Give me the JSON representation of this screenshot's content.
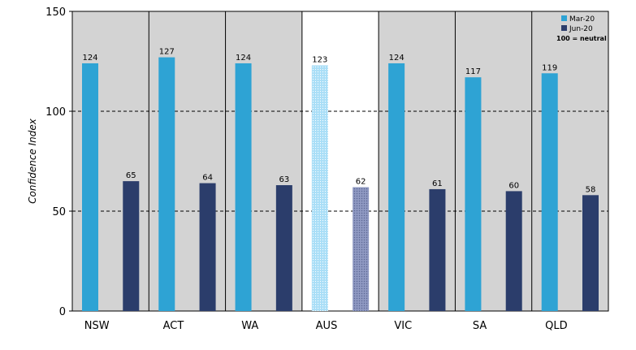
{
  "chart_data": {
    "type": "bar",
    "categories": [
      "NSW",
      "ACT",
      "WA",
      "AUS",
      "VIC",
      "SA",
      "QLD"
    ],
    "series": [
      {
        "name": "Mar-20",
        "values": [
          124,
          127,
          124,
          123,
          124,
          117,
          119
        ]
      },
      {
        "name": "Jun-20",
        "values": [
          65,
          64,
          63,
          62,
          61,
          60,
          58
        ]
      }
    ],
    "title": "",
    "xlabel": "",
    "ylabel": "Confidence Index",
    "ylim": [
      0,
      150
    ],
    "yticks": [
      0,
      50,
      100,
      150
    ],
    "reference_lines": [
      50,
      100
    ],
    "highlight_category": "AUS",
    "legend": {
      "position": "top-right",
      "note": "100 = neutral"
    },
    "colors": {
      "Mar-20": "#2ea3d4",
      "Jun-20": "#2b3d6b",
      "Mar-20_highlight": "#a9def7",
      "Jun-20_highlight": "#8f99c2",
      "panel_background": "#d3d3d3",
      "highlight_background": "#ffffff"
    },
    "grid": false
  }
}
